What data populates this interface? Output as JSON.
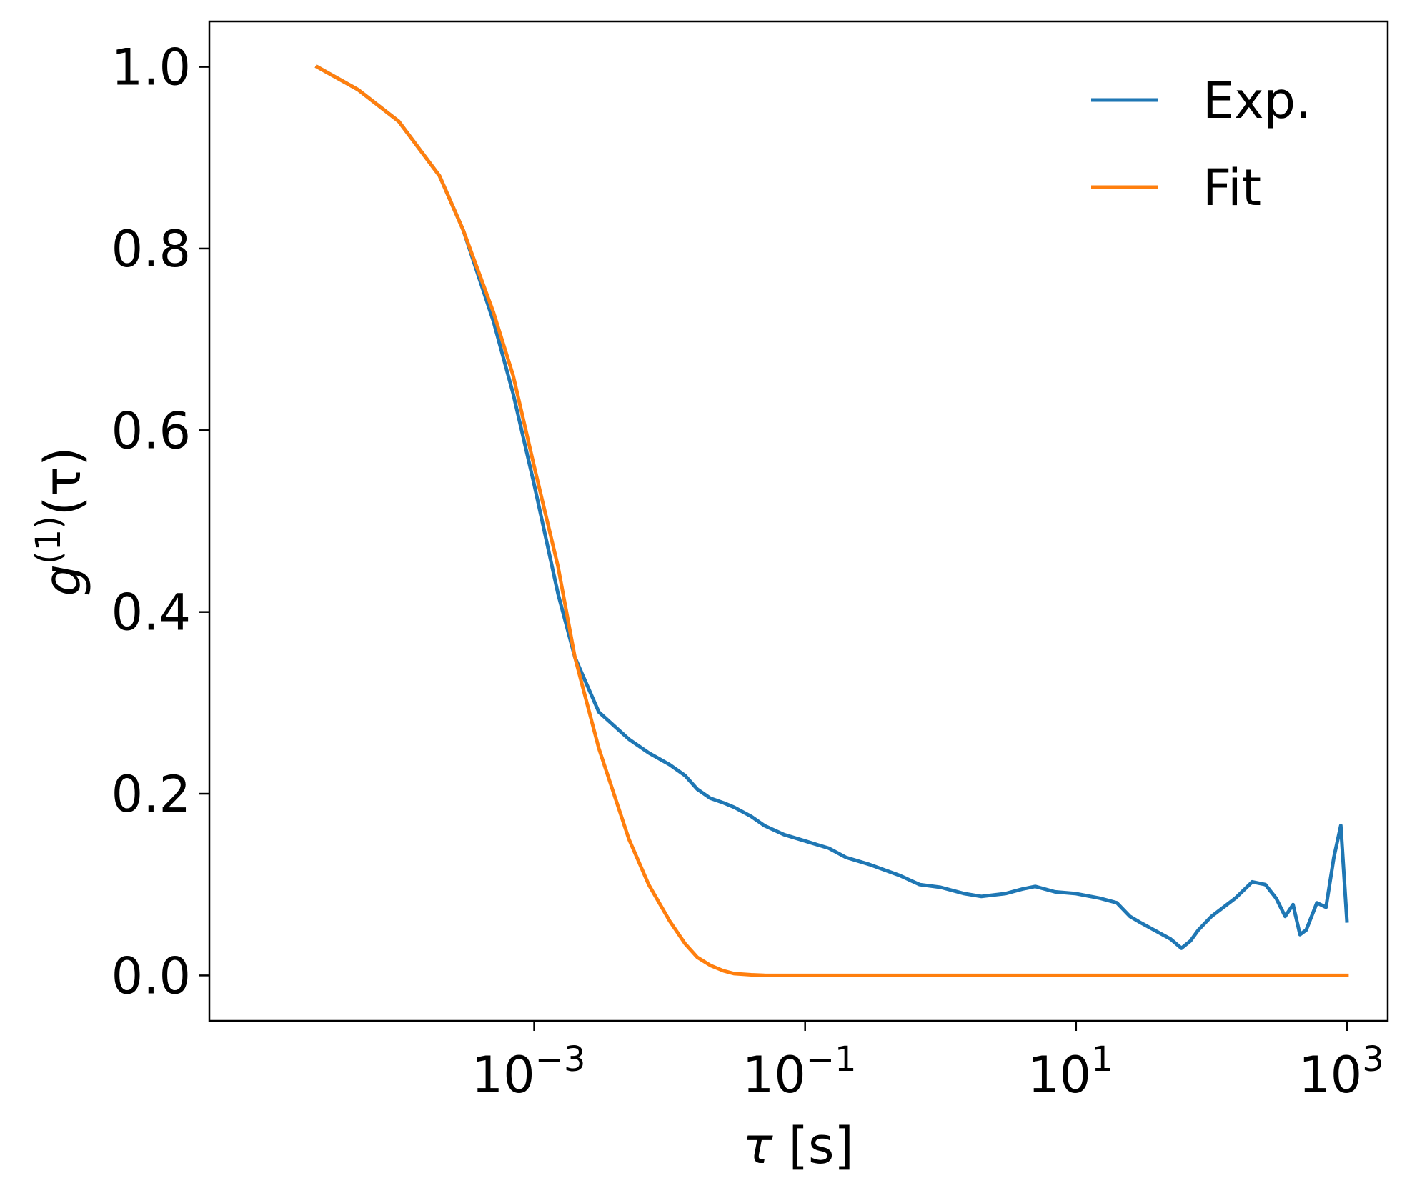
{
  "chart_data": {
    "type": "line",
    "xscale": "log",
    "xlim": [
      4e-06,
      2000
    ],
    "ylim": [
      -0.05,
      1.05
    ],
    "xticks": [
      {
        "value": 0.001,
        "base": "10",
        "exp": "−3"
      },
      {
        "value": 0.1,
        "base": "10",
        "exp": "−1"
      },
      {
        "value": 10,
        "base": "10",
        "exp": "1"
      },
      {
        "value": 1000,
        "base": "10",
        "exp": "3"
      }
    ],
    "yticks": [
      {
        "value": 0.0,
        "label": "0.0"
      },
      {
        "value": 0.2,
        "label": "0.2"
      },
      {
        "value": 0.4,
        "label": "0.4"
      },
      {
        "value": 0.6,
        "label": "0.6"
      },
      {
        "value": 0.8,
        "label": "0.8"
      },
      {
        "value": 1.0,
        "label": "1.0"
      }
    ],
    "xlabel": {
      "symbol": "τ",
      "unit": " [s]"
    },
    "ylabel": {
      "g": "g",
      "sup": "(1)",
      "arg": "(τ)"
    },
    "legend": {
      "placement": "upper right",
      "frame": false
    },
    "grid": false,
    "series": [
      {
        "name": "Exp.",
        "color": "#1f77b4",
        "x": [
          2.5e-05,
          5e-05,
          0.0001,
          0.0002,
          0.0003,
          0.0005,
          0.0007,
          0.001,
          0.0015,
          0.002,
          0.003,
          0.005,
          0.007,
          0.01,
          0.013,
          0.016,
          0.02,
          0.025,
          0.03,
          0.04,
          0.05,
          0.07,
          0.1,
          0.15,
          0.2,
          0.3,
          0.5,
          0.7,
          1,
          1.5,
          2,
          3,
          4,
          5,
          7,
          10,
          15,
          20,
          25,
          30,
          40,
          50,
          60,
          70,
          80,
          100,
          150,
          200,
          250,
          300,
          350,
          400,
          450,
          500,
          600,
          700,
          800,
          900,
          1000
        ],
        "y": [
          1.0,
          0.975,
          0.94,
          0.88,
          0.82,
          0.72,
          0.64,
          0.54,
          0.42,
          0.35,
          0.29,
          0.26,
          0.245,
          0.232,
          0.22,
          0.205,
          0.195,
          0.19,
          0.185,
          0.175,
          0.165,
          0.155,
          0.148,
          0.14,
          0.13,
          0.122,
          0.11,
          0.1,
          0.097,
          0.09,
          0.087,
          0.09,
          0.095,
          0.098,
          0.092,
          0.09,
          0.085,
          0.08,
          0.065,
          0.058,
          0.048,
          0.04,
          0.03,
          0.038,
          0.05,
          0.065,
          0.085,
          0.103,
          0.1,
          0.085,
          0.065,
          0.078,
          0.045,
          0.05,
          0.08,
          0.075,
          0.13,
          0.165,
          0.06
        ]
      },
      {
        "name": "Fit",
        "color": "#ff7f0e",
        "x": [
          2.5e-05,
          5e-05,
          0.0001,
          0.0002,
          0.0003,
          0.0005,
          0.0007,
          0.001,
          0.0015,
          0.002,
          0.003,
          0.005,
          0.007,
          0.01,
          0.013,
          0.016,
          0.02,
          0.025,
          0.03,
          0.04,
          0.05,
          0.07,
          0.1,
          0.2,
          0.5,
          1,
          10,
          100,
          1000
        ],
        "y": [
          1.0,
          0.975,
          0.94,
          0.88,
          0.82,
          0.73,
          0.66,
          0.56,
          0.45,
          0.35,
          0.25,
          0.15,
          0.1,
          0.06,
          0.035,
          0.02,
          0.011,
          0.005,
          0.002,
          0.0007,
          0.0002,
          0.0,
          0.0,
          0.0,
          0.0,
          0.0,
          0.0,
          0.0,
          0.0
        ]
      }
    ]
  }
}
